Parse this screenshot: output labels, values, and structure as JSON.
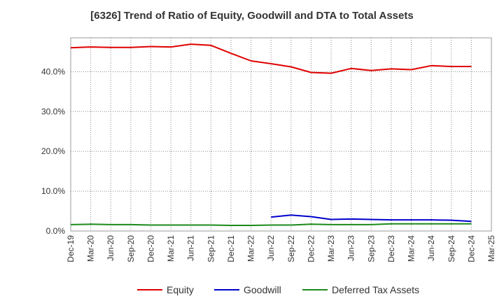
{
  "title": "[6326]  Trend of Ratio of Equity, Goodwill and DTA to Total Assets",
  "chart_data": {
    "type": "line",
    "title": "[6326]  Trend of Ratio of Equity, Goodwill and DTA to Total Assets",
    "xlabel": "",
    "ylabel": "",
    "x": [
      "Dec-19",
      "Mar-20",
      "Jun-20",
      "Sep-20",
      "Dec-20",
      "Mar-21",
      "Jun-21",
      "Sep-21",
      "Dec-21",
      "Mar-22",
      "Jun-22",
      "Sep-22",
      "Dec-22",
      "Mar-23",
      "Jun-23",
      "Sep-23",
      "Dec-23",
      "Mar-24",
      "Jun-24",
      "Sep-24",
      "Dec-24",
      "Mar-25"
    ],
    "xtick_labels": [
      "Dec-19",
      "Mar-20",
      "Jun-20",
      "Sep-20",
      "Dec-20",
      "Mar-21",
      "Jun-21",
      "Sep-21",
      "Dec-21",
      "Mar-22",
      "Jun-22",
      "Sep-22",
      "Dec-22",
      "Mar-23",
      "Jun-23",
      "Sep-23",
      "Dec-23",
      "Mar-24",
      "Jun-24",
      "Sep-24",
      "Dec-24",
      "Mar-25"
    ],
    "ylim": [
      0,
      48.5
    ],
    "yticks": [
      0,
      10,
      20,
      30,
      40
    ],
    "ytick_labels": [
      "0.0%",
      "10.0%",
      "20.0%",
      "30.0%",
      "40.0%"
    ],
    "grid": true,
    "legend_position": "bottom",
    "series": [
      {
        "name": "Equity",
        "color": "#e00000",
        "values": [
          46.0,
          46.2,
          46.1,
          46.1,
          46.3,
          46.2,
          46.9,
          46.6,
          44.6,
          42.7,
          42.0,
          41.2,
          39.8,
          39.6,
          40.8,
          40.3,
          40.7,
          40.5,
          41.5,
          41.3,
          41.3,
          null
        ]
      },
      {
        "name": "Goodwill",
        "color": "#0000cc",
        "values": [
          null,
          null,
          null,
          null,
          null,
          null,
          null,
          null,
          null,
          null,
          3.5,
          4.0,
          3.6,
          2.9,
          3.0,
          2.9,
          2.8,
          2.8,
          2.8,
          2.7,
          2.4,
          null
        ]
      },
      {
        "name": "Deferred Tax Assets",
        "color": "#1a8a1a",
        "values": [
          1.6,
          1.7,
          1.6,
          1.6,
          1.5,
          1.5,
          1.5,
          1.5,
          1.4,
          1.4,
          1.5,
          1.5,
          1.7,
          1.6,
          1.6,
          1.6,
          1.8,
          1.8,
          1.8,
          1.8,
          1.8,
          null
        ]
      }
    ]
  }
}
